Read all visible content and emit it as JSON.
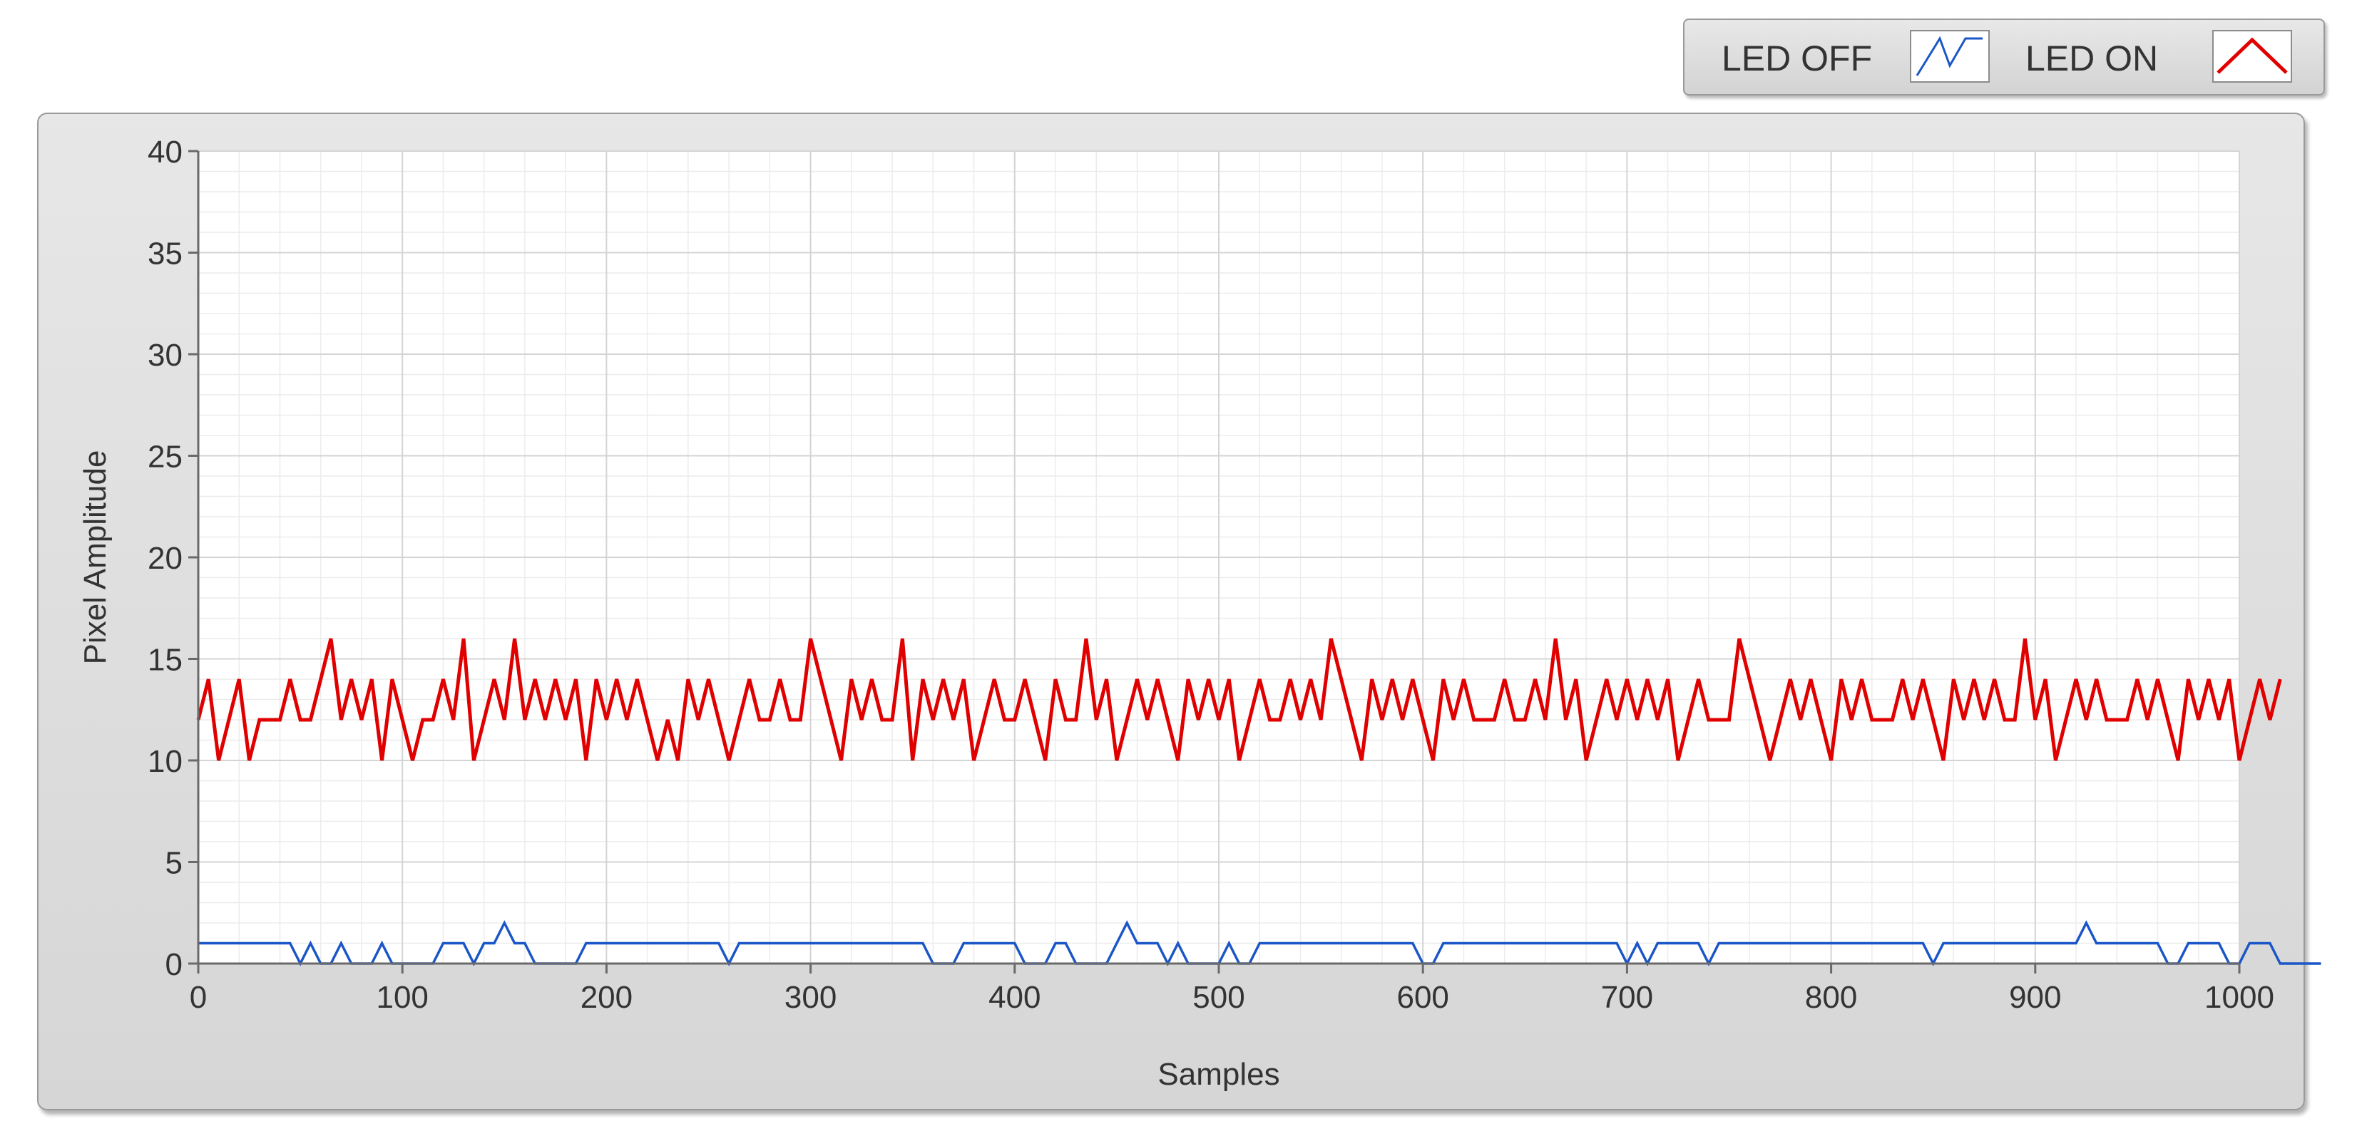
{
  "legend": {
    "items": [
      {
        "label": "LED OFF",
        "color": "#1a56c8",
        "icon": "line-plot-swatch-icon"
      },
      {
        "label": "LED ON",
        "color": "#e00000",
        "icon": "line-plot-swatch-icon"
      }
    ]
  },
  "chart_data": {
    "type": "line",
    "xlabel": "Samples",
    "ylabel": "Pixel Amplitude",
    "xlim": [
      0,
      1000
    ],
    "ylim": [
      0,
      40
    ],
    "x_ticks": [
      "0",
      "100",
      "200",
      "300",
      "400",
      "500",
      "600",
      "700",
      "800",
      "900",
      "1000"
    ],
    "y_ticks": [
      "0",
      "5",
      "10",
      "15",
      "20",
      "25",
      "30",
      "35",
      "40"
    ],
    "grid": true,
    "minor_grid": true,
    "legend_position": "top-right, outside plot",
    "background": "#ffffff",
    "series": [
      {
        "name": "LED OFF",
        "color": "#1a56c8",
        "x_start": 0,
        "x_step": 5,
        "values": [
          1,
          1,
          1,
          1,
          1,
          1,
          1,
          1,
          1,
          1,
          0,
          1,
          0,
          0,
          1,
          0,
          0,
          0,
          1,
          0,
          0,
          0,
          0,
          0,
          1,
          1,
          1,
          0,
          1,
          1,
          2,
          1,
          1,
          0,
          0,
          0,
          0,
          0,
          1,
          1,
          1,
          1,
          1,
          1,
          1,
          1,
          1,
          1,
          1,
          1,
          1,
          1,
          0,
          1,
          1,
          1,
          1,
          1,
          1,
          1,
          1,
          1,
          1,
          1,
          1,
          1,
          1,
          1,
          1,
          1,
          1,
          1,
          0,
          0,
          0,
          1,
          1,
          1,
          1,
          1,
          1,
          0,
          0,
          0,
          1,
          1,
          0,
          0,
          0,
          0,
          1,
          2,
          1,
          1,
          1,
          0,
          1,
          0,
          0,
          0,
          0,
          1,
          0,
          0,
          1,
          1,
          1,
          1,
          1,
          1,
          1,
          1,
          1,
          1,
          1,
          1,
          1,
          1,
          1,
          1,
          0,
          0,
          1,
          1,
          1,
          1,
          1,
          1,
          1,
          1,
          1,
          1,
          1,
          1,
          1,
          1,
          1,
          1,
          1,
          1,
          0,
          1,
          0,
          1,
          1,
          1,
          1,
          1,
          0,
          1,
          1,
          1,
          1,
          1,
          1,
          1,
          1,
          1,
          1,
          1,
          1,
          1,
          1,
          1,
          1,
          1,
          1,
          1,
          1,
          1,
          0,
          1,
          1,
          1,
          1,
          1,
          1,
          1,
          1,
          1,
          1,
          1,
          1,
          1,
          1,
          2,
          1,
          1,
          1,
          1,
          1,
          1,
          1,
          0,
          0,
          1,
          1,
          1,
          1,
          0,
          0,
          1,
          1,
          1,
          0,
          0,
          0,
          0,
          0
        ]
      },
      {
        "name": "LED ON",
        "color": "#e00000",
        "x_start": 0,
        "x_step": 5,
        "values": [
          12,
          14,
          10,
          12,
          14,
          10,
          12,
          12,
          12,
          14,
          12,
          12,
          14,
          16,
          12,
          14,
          12,
          14,
          10,
          14,
          12,
          10,
          12,
          12,
          14,
          12,
          16,
          10,
          12,
          14,
          12,
          16,
          12,
          14,
          12,
          14,
          12,
          14,
          10,
          14,
          12,
          14,
          12,
          14,
          12,
          10,
          12,
          10,
          14,
          12,
          14,
          12,
          10,
          12,
          14,
          12,
          12,
          14,
          12,
          12,
          16,
          14,
          12,
          10,
          14,
          12,
          14,
          12,
          12,
          16,
          10,
          14,
          12,
          14,
          12,
          14,
          10,
          12,
          14,
          12,
          12,
          14,
          12,
          10,
          14,
          12,
          12,
          16,
          12,
          14,
          10,
          12,
          14,
          12,
          14,
          12,
          10,
          14,
          12,
          14,
          12,
          14,
          10,
          12,
          14,
          12,
          12,
          14,
          12,
          14,
          12,
          16,
          14,
          12,
          10,
          14,
          12,
          14,
          12,
          14,
          12,
          10,
          14,
          12,
          14,
          12,
          12,
          12,
          14,
          12,
          12,
          14,
          12,
          16,
          12,
          14,
          10,
          12,
          14,
          12,
          14,
          12,
          14,
          12,
          14,
          10,
          12,
          14,
          12,
          12,
          12,
          16,
          14,
          12,
          10,
          12,
          14,
          12,
          14,
          12,
          10,
          14,
          12,
          14,
          12,
          12,
          12,
          14,
          12,
          14,
          12,
          10,
          14,
          12,
          14,
          12,
          14,
          12,
          12,
          16,
          12,
          14,
          10,
          12,
          14,
          12,
          14,
          12,
          12,
          12,
          14,
          12,
          14,
          12,
          10,
          14,
          12,
          14,
          12,
          14,
          10,
          12,
          14,
          12,
          14
        ]
      }
    ]
  }
}
